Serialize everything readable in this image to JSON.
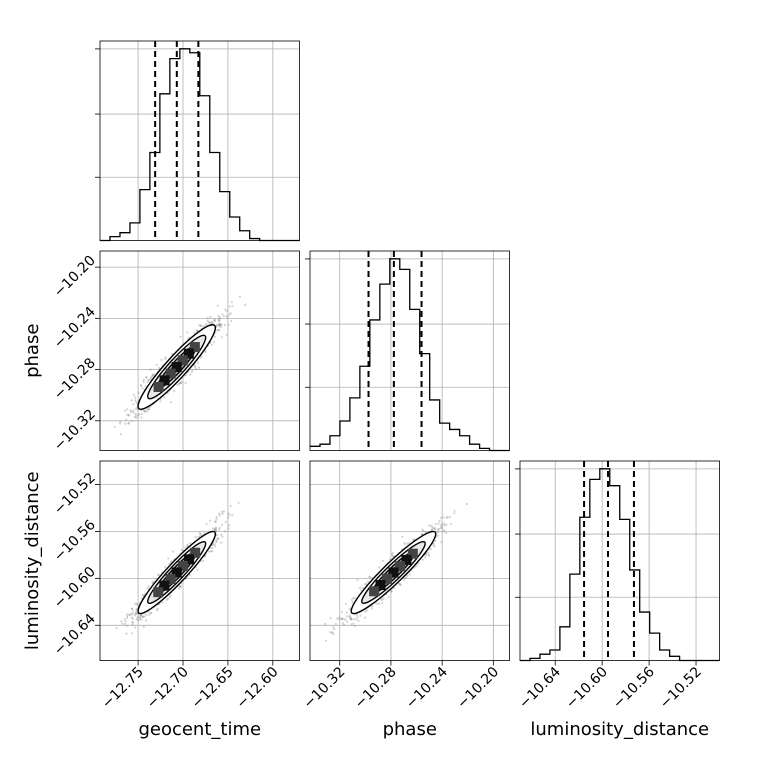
{
  "chart_data": {
    "type": "corner",
    "parameters": [
      "geocent_time",
      "phase",
      "luminosity_distance"
    ],
    "axis_labels": {
      "x": [
        "geocent_time",
        "phase",
        "luminosity_distance"
      ],
      "y": [
        "",
        "phase",
        "luminosity_distance"
      ]
    },
    "ticks": {
      "geocent_time": [
        {
          "value": -12.75,
          "label": "−12.75"
        },
        {
          "value": -12.7,
          "label": "−12.70"
        },
        {
          "value": -12.65,
          "label": "−12.65"
        },
        {
          "value": -12.6,
          "label": "−12.60"
        }
      ],
      "phase": [
        {
          "value": -10.32,
          "label": "−10.32"
        },
        {
          "value": -10.28,
          "label": "−10.28"
        },
        {
          "value": -10.24,
          "label": "−10.24"
        },
        {
          "value": -10.2,
          "label": "−10.20"
        }
      ],
      "luminosity_distance": [
        {
          "value": -10.64,
          "label": "−10.64"
        },
        {
          "value": -10.6,
          "label": "−10.60"
        },
        {
          "value": -10.56,
          "label": "−10.56"
        },
        {
          "value": -10.52,
          "label": "−10.52"
        }
      ]
    },
    "ranges": {
      "geocent_time": [
        -12.7924,
        -12.5703
      ],
      "phase": [
        -10.3432,
        -10.1874
      ],
      "luminosity_distance": [
        -10.67,
        -10.5
      ]
    },
    "histograms": {
      "geocent_time": {
        "edges_start": -12.7924,
        "bin_width": 0.01111,
        "counts": [
          0,
          2,
          4,
          9,
          26,
          45,
          75,
          93,
          98,
          96,
          74,
          45,
          25,
          12,
          5,
          1,
          0,
          0,
          0,
          0
        ],
        "quantiles": [
          -12.731,
          -12.7069,
          -12.6829
        ]
      },
      "phase": {
        "edges_start": -10.3432,
        "bin_width": 0.00779,
        "counts": [
          2,
          3,
          7,
          14,
          25,
          40,
          62,
          79,
          91,
          86,
          67,
          46,
          24,
          13,
          10,
          7,
          3,
          1,
          0,
          0
        ],
        "quantiles": [
          -10.2975,
          -10.2777,
          -10.2561
        ]
      },
      "luminosity_distance": {
        "edges_start": -10.67,
        "bin_width": 0.0085,
        "counts": [
          0,
          1,
          3,
          5,
          16,
          41,
          68,
          86,
          91,
          83,
          67,
          43,
          23,
          13,
          5,
          2,
          0,
          0,
          0,
          0
        ],
        "quantiles": [
          -10.6154,
          -10.595,
          -10.5729
        ]
      }
    },
    "contours": [
      {
        "x": "geocent_time",
        "y": "phase",
        "center": [
          -12.707,
          -10.278
        ],
        "sd": [
          0.0215,
          0.0165
        ],
        "rho": 0.93
      },
      {
        "x": "geocent_time",
        "y": "luminosity_distance",
        "center": [
          -12.707,
          -10.595
        ],
        "sd": [
          0.0215,
          0.0175
        ],
        "rho": 0.94
      },
      {
        "x": "phase",
        "y": "luminosity_distance",
        "center": [
          -10.278,
          -10.595
        ],
        "sd": [
          0.0165,
          0.0175
        ],
        "rho": 0.94
      }
    ],
    "levels_sigma": [
      0.5,
      1,
      1.5,
      2
    ],
    "grid": true,
    "colors": {
      "line": "#000000",
      "points": "#808080",
      "grid": "#b0b0b0"
    }
  }
}
